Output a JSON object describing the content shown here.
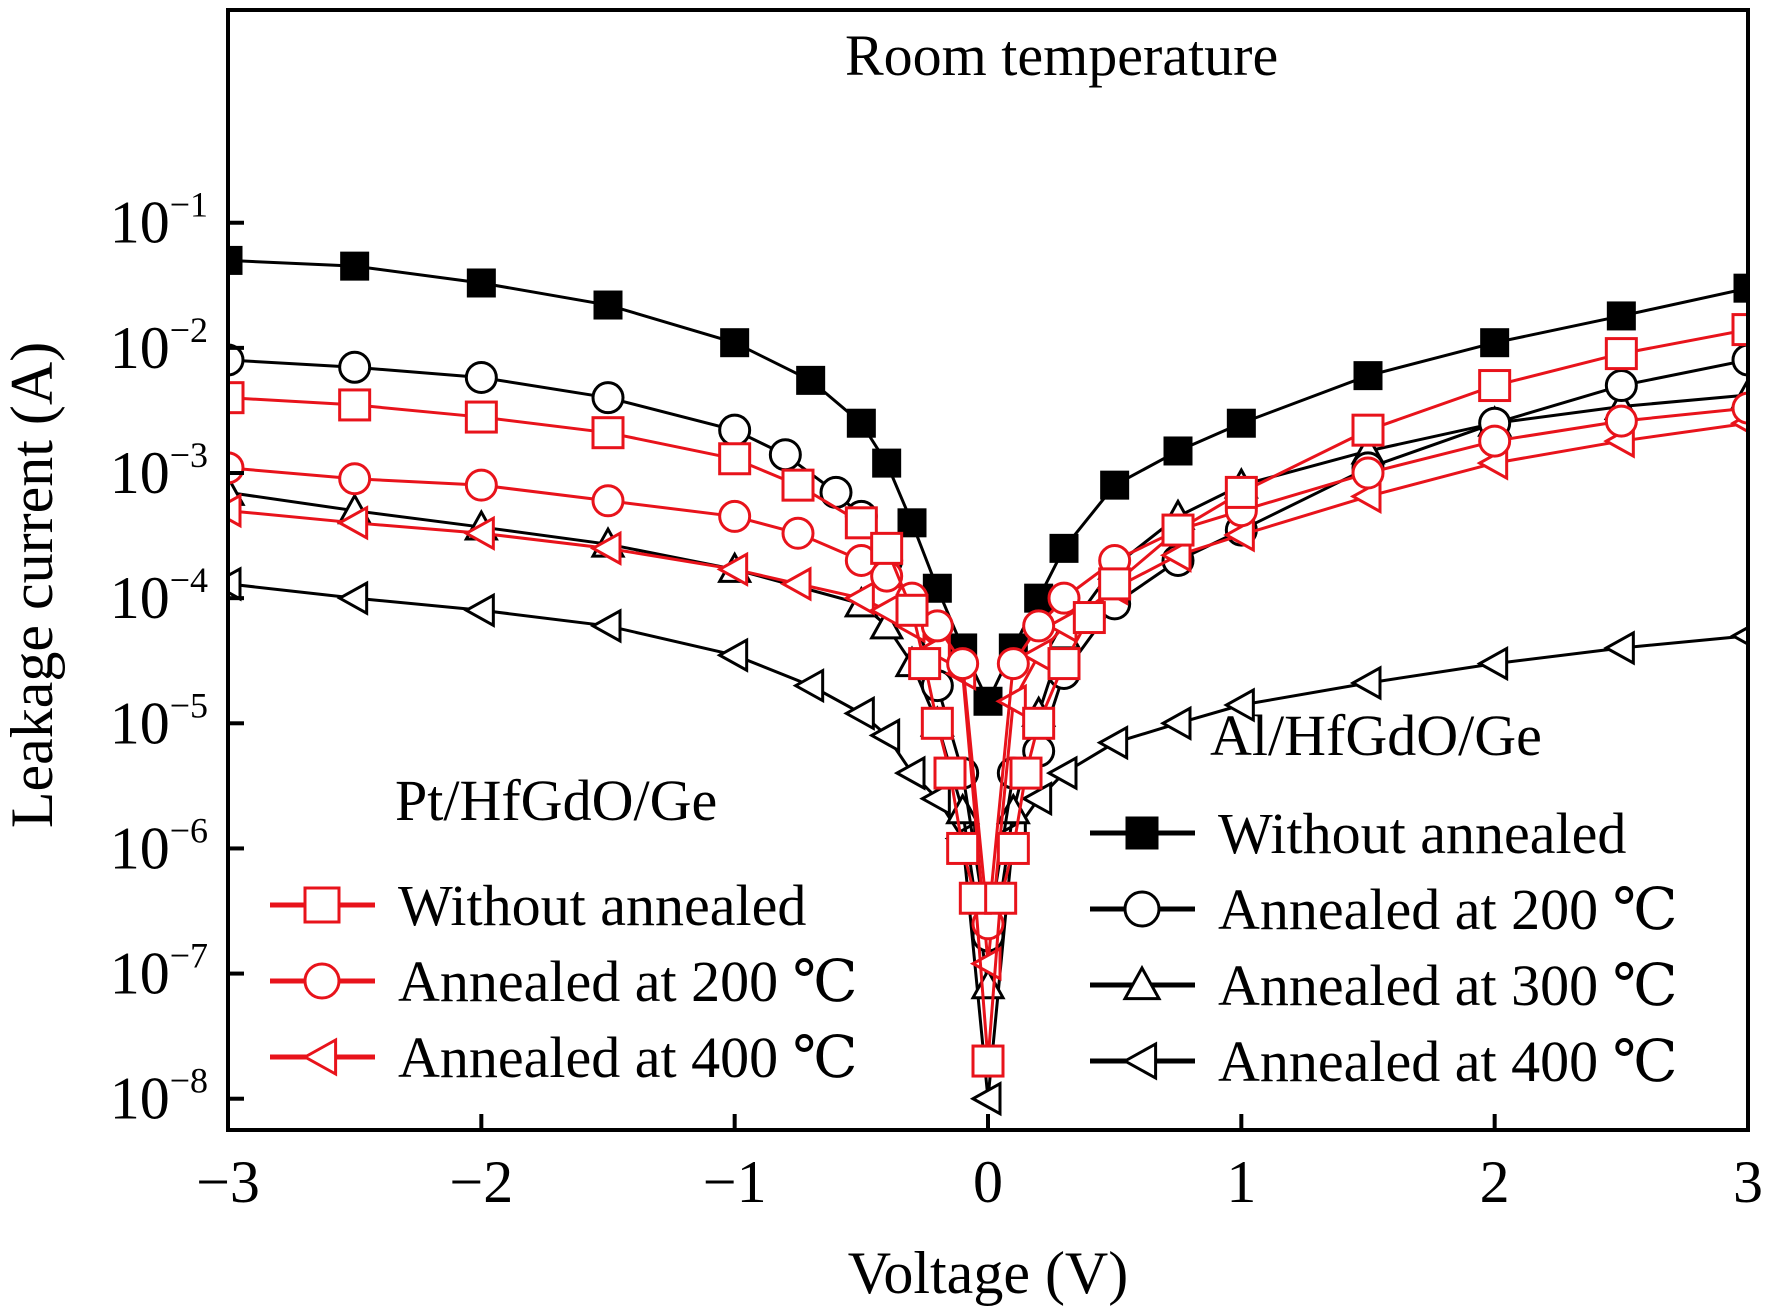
{
  "chart_data": {
    "type": "scatter",
    "title": "",
    "xlabel": "Voltage (V)",
    "ylabel": "Leakage current (A)",
    "xlim": [
      -3,
      3
    ],
    "ylim_log10": [
      -8.25,
      0.7
    ],
    "yscale": "log",
    "xticks": [
      -3,
      -2,
      -1,
      0,
      1,
      2,
      3
    ],
    "xtick_labels": [
      "−3",
      "−2",
      "−1",
      "0",
      "1",
      "2",
      "3"
    ],
    "yticks": [
      {
        "base": "10",
        "exp": "−1",
        "value": 0.1
      },
      {
        "base": "10",
        "exp": "−2",
        "value": 0.01
      },
      {
        "base": "10",
        "exp": "−3",
        "value": 0.001
      },
      {
        "base": "10",
        "exp": "−4",
        "value": 0.0001
      },
      {
        "base": "10",
        "exp": "−5",
        "value": 1e-05
      },
      {
        "base": "10",
        "exp": "−6",
        "value": 1e-06
      },
      {
        "base": "10",
        "exp": "−7",
        "value": 1e-07
      },
      {
        "base": "10",
        "exp": "−8",
        "value": 1e-08
      }
    ],
    "grid": false,
    "annotations": [
      "Room temperature",
      "Pt/HfGdO/Ge",
      "Al/HfGdO/Ge"
    ],
    "legend_groups": [
      {
        "title": "Pt/HfGdO/Ge",
        "placement": "bottom-left",
        "entries": [
          "Without annealed",
          "Annealed at 200 ℃",
          "Annealed at 400 ℃"
        ]
      },
      {
        "title": "Al/HfGdO/Ge",
        "placement": "bottom-right",
        "entries": [
          "Without annealed",
          "Annealed at 200 ℃",
          "Annealed at 300 ℃",
          "Annealed at 400 ℃"
        ]
      }
    ],
    "series": [
      {
        "name": "Without annealed",
        "group": "Al/HfGdO/Ge",
        "color": "#000000",
        "marker": "square-filled",
        "x": [
          -3,
          -2.5,
          -2,
          -1.5,
          -1,
          -0.7,
          -0.5,
          -0.4,
          -0.3,
          -0.2,
          -0.1,
          0,
          0.1,
          0.2,
          0.3,
          0.5,
          0.75,
          1,
          1.5,
          2,
          2.5,
          3
        ],
        "y": [
          0.05,
          0.045,
          0.033,
          0.022,
          0.011,
          0.0055,
          0.0025,
          0.0012,
          0.0004,
          0.00012,
          4e-05,
          1.5e-05,
          4e-05,
          0.0001,
          0.00025,
          0.0008,
          0.0015,
          0.0025,
          0.006,
          0.011,
          0.018,
          0.03
        ]
      },
      {
        "name": "Annealed at 200 ℃",
        "group": "Al/HfGdO/Ge",
        "color": "#000000",
        "marker": "circle-open",
        "x": [
          -3,
          -2.5,
          -2,
          -1.5,
          -1,
          -0.8,
          -0.6,
          -0.5,
          -0.4,
          -0.3,
          -0.2,
          -0.1,
          0,
          0.1,
          0.2,
          0.3,
          0.5,
          0.75,
          1,
          1.5,
          2,
          2.5,
          3
        ],
        "y": [
          0.008,
          0.007,
          0.0058,
          0.004,
          0.0022,
          0.0014,
          0.0007,
          0.00045,
          0.0002,
          8e-05,
          2e-05,
          4e-06,
          2e-07,
          4e-06,
          6e-06,
          2.5e-05,
          9e-05,
          0.0002,
          0.00035,
          0.0011,
          0.0025,
          0.005,
          0.008
        ]
      },
      {
        "name": "Annealed at 300 ℃",
        "group": "Al/HfGdO/Ge",
        "color": "#000000",
        "marker": "triangle-up-open",
        "x": [
          -3,
          -2.5,
          -2,
          -1.5,
          -1,
          -0.5,
          -0.4,
          -0.3,
          -0.2,
          -0.1,
          0,
          0.1,
          0.2,
          0.3,
          0.5,
          0.75,
          1,
          1.5,
          2,
          2.5,
          3
        ],
        "y": [
          0.0007,
          0.0005,
          0.00037,
          0.00027,
          0.00017,
          9e-05,
          6e-05,
          3e-05,
          1e-05,
          2e-06,
          8e-08,
          2e-06,
          1.2e-05,
          5e-05,
          0.00018,
          0.00045,
          0.0008,
          0.0015,
          0.0025,
          0.0034,
          0.0042
        ]
      },
      {
        "name": "Annealed at 400 ℃",
        "group": "Al/HfGdO/Ge",
        "color": "#000000",
        "marker": "triangle-left-open",
        "x": [
          -3,
          -2.5,
          -2,
          -1.5,
          -1,
          -0.7,
          -0.5,
          -0.4,
          -0.3,
          -0.2,
          -0.1,
          0,
          0.1,
          0.2,
          0.3,
          0.5,
          0.75,
          1,
          1.5,
          2,
          2.5,
          3
        ],
        "y": [
          0.00013,
          0.0001,
          8e-05,
          6e-05,
          3.5e-05,
          2e-05,
          1.2e-05,
          8e-06,
          4e-06,
          2.5e-06,
          1.2e-06,
          1e-08,
          1.3e-06,
          2.5e-06,
          4e-06,
          7e-06,
          1e-05,
          1.4e-05,
          2.1e-05,
          3e-05,
          4e-05,
          5e-05
        ]
      },
      {
        "name": "Without annealed",
        "group": "Pt/HfGdO/Ge",
        "color": "#e8131b",
        "marker": "square-open",
        "x": [
          -3,
          -2.5,
          -2,
          -1.5,
          -1,
          -0.75,
          -0.5,
          -0.4,
          -0.3,
          -0.25,
          -0.2,
          -0.15,
          -0.1,
          -0.05,
          0,
          0.05,
          0.1,
          0.15,
          0.2,
          0.3,
          0.4,
          0.5,
          0.75,
          1,
          1.5,
          2,
          2.5,
          3
        ],
        "y": [
          0.004,
          0.0035,
          0.0028,
          0.0021,
          0.0013,
          0.0008,
          0.0004,
          0.00025,
          8e-05,
          3e-05,
          1e-05,
          4e-06,
          1e-06,
          4e-07,
          2e-08,
          4e-07,
          1e-06,
          4e-06,
          1e-05,
          3e-05,
          7e-05,
          0.00013,
          0.00035,
          0.0007,
          0.0022,
          0.005,
          0.009,
          0.014
        ]
      },
      {
        "name": "Annealed at 200 ℃",
        "group": "Pt/HfGdO/Ge",
        "color": "#e8131b",
        "marker": "circle-open",
        "x": [
          -3,
          -2.5,
          -2,
          -1.5,
          -1,
          -0.75,
          -0.5,
          -0.4,
          -0.3,
          -0.2,
          -0.1,
          0,
          0.1,
          0.2,
          0.3,
          0.5,
          0.75,
          1,
          1.5,
          2,
          2.5,
          3
        ],
        "y": [
          0.0011,
          0.0009,
          0.0008,
          0.0006,
          0.00045,
          0.00033,
          0.0002,
          0.00015,
          0.0001,
          6e-05,
          3e-05,
          2.5e-07,
          3e-05,
          6e-05,
          0.0001,
          0.0002,
          0.00035,
          0.0005,
          0.001,
          0.0018,
          0.0026,
          0.0033
        ]
      },
      {
        "name": "Annealed at 400 ℃",
        "group": "Pt/HfGdO/Ge",
        "color": "#e8131b",
        "marker": "triangle-left-open",
        "x": [
          -3,
          -2.5,
          -2,
          -1.5,
          -1,
          -0.75,
          -0.5,
          -0.4,
          -0.3,
          -0.2,
          -0.1,
          0,
          0.1,
          0.2,
          0.3,
          0.5,
          0.75,
          1,
          1.5,
          2,
          2.5,
          3
        ],
        "y": [
          0.0005,
          0.0004,
          0.00033,
          0.00025,
          0.00017,
          0.00013,
          0.0001,
          8e-05,
          6e-05,
          4e-05,
          2.5e-05,
          1.2e-07,
          1.5e-05,
          3.5e-05,
          6e-05,
          0.00012,
          0.00022,
          0.00032,
          0.00065,
          0.0012,
          0.0018,
          0.0025
        ]
      }
    ]
  }
}
